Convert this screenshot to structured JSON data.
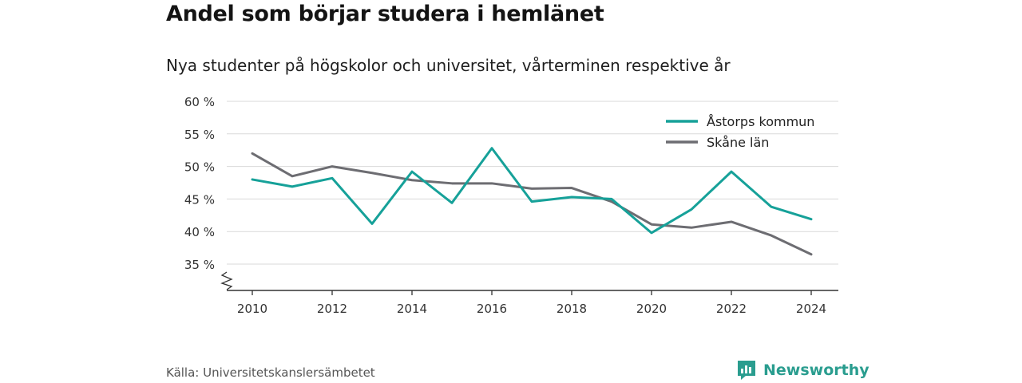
{
  "header": {
    "title": "Andel som börjar studera i hemlänet",
    "subtitle": "Nya studenter på högskolor och universitet, vårterminen respektive år"
  },
  "chart_data": {
    "type": "line",
    "x": [
      2010,
      2011,
      2012,
      2013,
      2014,
      2015,
      2016,
      2017,
      2018,
      2019,
      2020,
      2021,
      2022,
      2023,
      2024
    ],
    "x_ticks": [
      "2010",
      "2012",
      "2014",
      "2016",
      "2018",
      "2020",
      "2022",
      "2024"
    ],
    "y_ticks": [
      "35 %",
      "40 %",
      "45 %",
      "50 %",
      "55 %",
      "60 %"
    ],
    "ylim": [
      35,
      60
    ],
    "y_axis_break": true,
    "grid": true,
    "legend_position": "top-right",
    "series": [
      {
        "name": "Åstorps kommun",
        "color": "#16a199",
        "values": [
          48.0,
          46.9,
          48.2,
          41.2,
          49.2,
          44.4,
          52.8,
          44.6,
          45.3,
          45.0,
          39.8,
          43.4,
          49.2,
          43.8,
          41.9
        ]
      },
      {
        "name": "Skåne län",
        "color": "#6d6d72",
        "values": [
          52.0,
          48.5,
          50.0,
          49.0,
          47.9,
          47.4,
          47.4,
          46.6,
          46.7,
          44.6,
          41.1,
          40.6,
          41.5,
          39.4,
          36.5
        ]
      }
    ]
  },
  "footer": {
    "source": "Källa: Universitetskanslersämbetet",
    "brand": "Newsworthy",
    "brand_color": "#2a9d8f",
    "logo_icon": "bar-chart-icon"
  }
}
